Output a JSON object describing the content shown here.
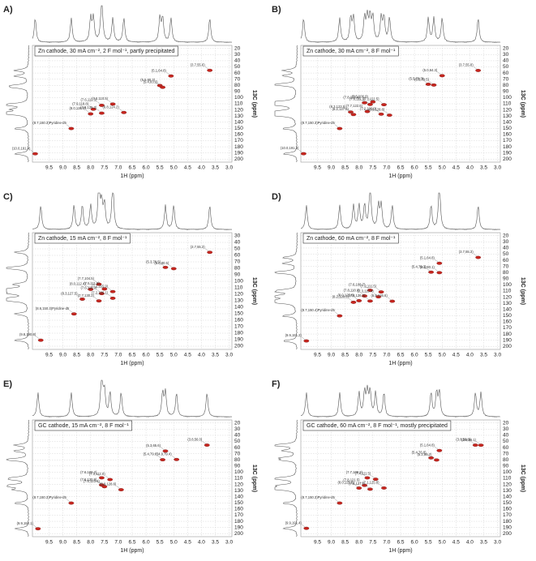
{
  "chart_data": [
    {
      "type": "scatter",
      "panel": "A)",
      "title": "Zn cathode, 30 mA cm⁻², 2 F mol⁻¹, partly precipitated",
      "x_label": "1H (ppm)",
      "y_label": "13C (ppm)",
      "color": "#c8261f",
      "xlim": [
        10.1,
        2.9
      ],
      "ylim": [
        15,
        205
      ],
      "xticks": [
        9.5,
        {
          "value": 9,
          "label": "9.0"
        },
        8.5,
        {
          "value": 8,
          "label": "8.0"
        },
        7.5,
        {
          "value": 7,
          "label": "7.0"
        },
        6.5,
        {
          "value": 6,
          "label": "6.0"
        },
        5.5,
        {
          "value": 5,
          "label": "5.0"
        },
        4.5,
        {
          "value": 4,
          "label": "4.0"
        },
        3.5,
        {
          "value": 3,
          "label": "3.0"
        }
      ],
      "yticks": [
        20,
        30,
        40,
        50,
        60,
        70,
        80,
        90,
        100,
        110,
        120,
        130,
        140,
        150,
        160,
        170,
        180,
        190,
        200
      ],
      "x": [
        3.7,
        5.1,
        5.5,
        5.4,
        7.6,
        7.2,
        7.9,
        7.6,
        8.0,
        6.8,
        8.7,
        10.0
      ],
      "values": [
        55.6,
        64.8,
        80.3,
        83.2,
        112.5,
        110.5,
        118.8,
        125.3,
        126.5,
        124.2,
        150.3,
        191.4
      ],
      "value_labels": [
        "(3.7,55.6)",
        "(5.1,64.8)",
        "(5.5,80.3)",
        "(5.4,83.2)",
        "(7.6,112.5)",
        "(7.2,110.5)",
        "(7.9,118.8)",
        "(7.6,125.3)",
        "(8.0,126.5)",
        "(6.8,124.2)",
        "(8.7,150.3)Pyridine-d5",
        "(10.0,191.4)"
      ]
    },
    {
      "type": "scatter",
      "panel": "B)",
      "title": "Zn cathode, 30 mA cm⁻², 8 F mol⁻¹",
      "x_label": "1H (ppm)",
      "y_label": "13C (ppm)",
      "color": "#c8261f",
      "xlim": [
        10.1,
        2.9
      ],
      "ylim": [
        15,
        205
      ],
      "xticks": [
        9.5,
        {
          "value": 9,
          "label": "9.0"
        },
        8.5,
        {
          "value": 8,
          "label": "8.0"
        },
        7.5,
        {
          "value": 7,
          "label": "7.0"
        },
        6.5,
        {
          "value": 6,
          "label": "6.0"
        },
        5.5,
        {
          "value": 5,
          "label": "5.0"
        },
        4.5,
        {
          "value": 4,
          "label": "4.0"
        },
        3.5,
        {
          "value": 3,
          "label": "3.0"
        }
      ],
      "yticks": [
        20,
        30,
        40,
        50,
        60,
        70,
        80,
        90,
        100,
        110,
        120,
        130,
        140,
        150,
        160,
        170,
        180,
        190,
        200
      ],
      "x": [
        3.7,
        5.0,
        5.5,
        5.3,
        7.5,
        7.8,
        7.6,
        7.1,
        8.3,
        7.7,
        7.2,
        6.9,
        8.2,
        8.7,
        10.0
      ],
      "values": [
        55.8,
        64.3,
        78.3,
        79.5,
        106.9,
        108.4,
        111.1,
        111.5,
        123.5,
        122.6,
        126.9,
        128.6,
        127.5,
        150.3,
        191.3
      ],
      "value_labels": [
        "(3.7,55.8)",
        "(5.0,64.3)",
        "(5.5,78.3)",
        "(5.3,79.5)",
        "(7.5,106.9)",
        "(7.8,108.4)",
        "(7.6,111.1)",
        "(7.1,111.5)",
        "(8.3,123.5)",
        "(7.7,122.6)",
        "(7.2,126.9)",
        "(6.9,128.6)",
        "(8.2,127.5)",
        "(8.7,150.3)Pyridine-d5",
        "(10.0,191.3)"
      ]
    },
    {
      "type": "scatter",
      "panel": "C)",
      "title": "Zn cathode, 15 mA cm⁻², 8 F mol⁻¹",
      "x_label": "1H (ppm)",
      "y_label": "13C (ppm)",
      "color": "#c8261f",
      "xlim": [
        10.1,
        2.9
      ],
      "ylim": [
        25,
        205
      ],
      "xticks": [
        9.5,
        {
          "value": 9,
          "label": "9.0"
        },
        8.5,
        {
          "value": 8,
          "label": "8.0"
        },
        7.5,
        {
          "value": 7,
          "label": "7.0"
        },
        6.5,
        {
          "value": 6,
          "label": "6.0"
        },
        5.5,
        {
          "value": 5,
          "label": "5.0"
        },
        4.5,
        {
          "value": 4,
          "label": "4.0"
        },
        3.5,
        {
          "value": 3,
          "label": "3.0"
        }
      ],
      "yticks": [
        30,
        40,
        50,
        60,
        70,
        80,
        90,
        100,
        110,
        120,
        130,
        140,
        150,
        160,
        170,
        180,
        190,
        200
      ],
      "x": [
        3.7,
        5.3,
        5.0,
        7.7,
        7.5,
        8.0,
        7.6,
        7.2,
        8.3,
        7.7,
        7.2,
        8.6,
        9.8
      ],
      "values": [
        55.3,
        78.5,
        80.5,
        104.5,
        111.8,
        112.4,
        118.9,
        115.9,
        127.5,
        130.2,
        126.1,
        150.3,
        190.8
      ],
      "value_labels": [
        "(3.7,55.3)",
        "(5.3,78.5)",
        "(5.0,80.5)",
        "(7.7,104.5)",
        "(7.5,111.8)",
        "(8.0,112.4)",
        "(7.6,118.9)",
        "(7.2,115.9)",
        "(8.3,127.5)",
        "(7.7,130.2)",
        "(7.2,126.1)",
        "(8.6,150.3)Pyridine-d5",
        "(9.8,190.8)"
      ]
    },
    {
      "type": "scatter",
      "panel": "D)",
      "title": "Zn cathode, 60 mA cm⁻², 8 F mol⁻¹",
      "x_label": "1H (ppm)",
      "y_label": "13C (ppm)",
      "color": "#c8261f",
      "xlim": [
        10.1,
        2.9
      ],
      "ylim": [
        15,
        205
      ],
      "xticks": [
        9.5,
        {
          "value": 9,
          "label": "9.0"
        },
        8.5,
        {
          "value": 8,
          "label": "8.0"
        },
        7.5,
        {
          "value": 7,
          "label": "7.0"
        },
        6.5,
        {
          "value": 6,
          "label": "6.0"
        },
        5.5,
        {
          "value": 5,
          "label": "5.0"
        },
        4.5,
        {
          "value": 4,
          "label": "4.0"
        },
        3.5,
        {
          "value": 3,
          "label": "3.0"
        }
      ],
      "yticks": [
        20,
        30,
        40,
        50,
        60,
        70,
        80,
        90,
        100,
        110,
        120,
        130,
        140,
        150,
        160,
        170,
        180,
        190,
        200
      ],
      "x": [
        3.7,
        5.1,
        5.4,
        5.1,
        7.6,
        7.2,
        7.8,
        7.3,
        8.0,
        7.6,
        6.8,
        8.2,
        8.7,
        9.9
      ],
      "values": [
        55.3,
        64.8,
        79.3,
        80.1,
        108.7,
        111.5,
        118.0,
        119.4,
        125.8,
        126.3,
        126.6,
        128.3,
        150.4,
        191.2
      ],
      "value_labels": [
        "(3.7,55.3)",
        "(5.1,64.8)",
        "(5.4,79.3)",
        "(5.1,80.1)",
        "(7.6,108.7)",
        "(7.2,111.5)",
        "(7.8,118.0)",
        "(7.3,119.4)",
        "(8.0,125.8)",
        "(7.6,126.3)",
        "(6.8,126.6)",
        "(8.2,128.3)",
        "(8.7,150.4)Pyridine-d5",
        "(9.9,191.2)"
      ]
    },
    {
      "type": "scatter",
      "panel": "E)",
      "title": "GC cathode, 15 mA cm⁻², 8 F mol⁻¹",
      "x_label": "1H (ppm)",
      "y_label": "13C (ppm)",
      "color": "#c8261f",
      "xlim": [
        10.1,
        2.9
      ],
      "ylim": [
        15,
        205
      ],
      "xticks": [
        9.5,
        {
          "value": 9,
          "label": "9.0"
        },
        8.5,
        {
          "value": 8,
          "label": "8.0"
        },
        7.5,
        {
          "value": 7,
          "label": "7.0"
        },
        6.5,
        {
          "value": 6,
          "label": "6.0"
        },
        5.5,
        {
          "value": 5,
          "label": "5.0"
        },
        4.5,
        {
          "value": 4,
          "label": "4.0"
        },
        3.5,
        {
          "value": 3,
          "label": "3.0"
        }
      ],
      "yticks": [
        20,
        30,
        40,
        50,
        60,
        70,
        80,
        90,
        100,
        110,
        120,
        130,
        140,
        150,
        160,
        170,
        180,
        190,
        200
      ],
      "x": [
        3.8,
        5.3,
        5.4,
        4.9,
        7.6,
        7.3,
        7.6,
        7.5,
        6.9,
        8.7,
        9.9
      ],
      "values": [
        56.0,
        65.6,
        79.8,
        79.4,
        109.2,
        112.0,
        120.9,
        123.6,
        128.6,
        150.3,
        192.1
      ],
      "value_labels": [
        "(3.8,56.0)",
        "(5.3,65.6)",
        "(5.4,79.8)",
        "(4.9,79.4)",
        "(7.6,109.2)",
        "(7.3,112.0)",
        "(7.6,120.9)",
        "(7.5,123.6)",
        "(6.9,128.6)",
        "(8.7,150.3)Pyridine-d5",
        "(9.9,192.1)"
      ]
    },
    {
      "type": "scatter",
      "panel": "F)",
      "title": "GC cathode, 60 mA cm⁻², 8 F mol⁻¹, mostly precipitated",
      "x_label": "1H (ppm)",
      "y_label": "13C (ppm)",
      "color": "#c8261f",
      "xlim": [
        10.1,
        2.9
      ],
      "ylim": [
        15,
        205
      ],
      "xticks": [
        9.5,
        {
          "value": 9,
          "label": "9.0"
        },
        8.5,
        {
          "value": 8,
          "label": "8.0"
        },
        7.5,
        {
          "value": 7,
          "label": "7.0"
        },
        6.5,
        {
          "value": 6,
          "label": "6.0"
        },
        5.5,
        {
          "value": 5,
          "label": "5.0"
        },
        4.5,
        {
          "value": 4,
          "label": "4.0"
        },
        3.5,
        {
          "value": 3,
          "label": "3.0"
        }
      ],
      "yticks": [
        20,
        30,
        40,
        50,
        60,
        70,
        80,
        90,
        100,
        110,
        120,
        130,
        140,
        150,
        160,
        170,
        180,
        190,
        200
      ],
      "x": [
        3.8,
        3.6,
        5.1,
        5.4,
        5.2,
        7.7,
        7.4,
        7.8,
        7.1,
        8.0,
        7.6,
        8.7,
        9.9
      ],
      "values": [
        56.0,
        56.1,
        64.8,
        76.8,
        80.2,
        109.3,
        111.5,
        121.5,
        125.8,
        125.9,
        127.7,
        150.3,
        191.4
      ],
      "value_labels": [
        "(3.8,56.0)",
        "(3.6,56.1)",
        "(5.1,64.8)",
        "(5.4,76.8)",
        "(5.2,80.2)",
        "(7.7,109.3)",
        "(7.4,111.5)",
        "(7.8,121.5)",
        "(7.1,125.8)",
        "(8.0,125.9)",
        "(7.6,127.7)",
        "(8.7,150.3)Pyridine-d5",
        "(9.9,191.4)"
      ]
    }
  ]
}
